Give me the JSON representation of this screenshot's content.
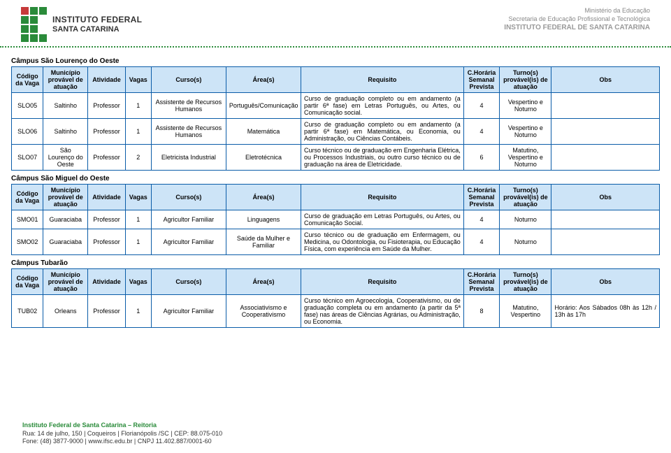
{
  "header": {
    "institution_line1": "INSTITUTO FEDERAL",
    "institution_line2": "SANTA CATARINA",
    "right_line1": "Ministério da Educação",
    "right_line2": "Secretaria de Educação Profissional e Tecnológica",
    "right_line3": "INSTITUTO FEDERAL DE SANTA CATARINA"
  },
  "columns": {
    "codigo": "Código da Vaga",
    "municipio": "Município provável de atuação",
    "atividade": "Atividade",
    "vagas": "Vagas",
    "cursos": "Curso(s)",
    "areas": "Área(s)",
    "requisito": "Requisito",
    "horaria": "C.Horária Semanal Prevista",
    "turnos": "Turno(s) provável(is) de atuação",
    "obs": "Obs"
  },
  "sections": [
    {
      "title": "Câmpus São Lourenço do Oeste",
      "show_header": true,
      "rows": [
        {
          "codigo": "SLO05",
          "municipio": "Saltinho",
          "atividade": "Professor",
          "vagas": "1",
          "cursos": "Assistente de Recursos Humanos",
          "areas": "Português/Comunicação",
          "requisito": "Curso de graduação completo ou em andamento (a partir 6ª fase) em Letras Português, ou Artes, ou Comunicação social.",
          "horaria": "4",
          "turnos": "Vespertino e Noturno",
          "obs": ""
        },
        {
          "codigo": "SLO06",
          "municipio": "Saltinho",
          "atividade": "Professor",
          "vagas": "1",
          "cursos": "Assistente de Recursos Humanos",
          "areas": "Matemática",
          "requisito": "Curso de graduação completo ou em andamento (a partir 6ª fase) em Matemática, ou Economia, ou Administração, ou Ciências Contábeis.",
          "horaria": "4",
          "turnos": "Vespertino e Noturno",
          "obs": ""
        },
        {
          "codigo": "SLO07",
          "municipio": "São Lourenço do Oeste",
          "atividade": "Professor",
          "vagas": "2",
          "cursos": "Eletricista Industrial",
          "areas": "Eletrotécnica",
          "requisito": "Curso técnico ou de graduação em Engenharia Elétrica, ou Processos Industriais, ou outro curso técnico ou de graduação na área de Eletricidade.",
          "horaria": "6",
          "turnos": "Matutino, Vespertino e Noturno",
          "obs": ""
        }
      ]
    },
    {
      "title": "Câmpus São Miguel do Oeste",
      "show_header": true,
      "rows": [
        {
          "codigo": "SMO01",
          "municipio": "Guaraciaba",
          "atividade": "Professor",
          "vagas": "1",
          "cursos": "Agricultor Familiar",
          "areas": "Linguagens",
          "requisito": "Curso de graduação em Letras Português, ou Artes, ou Comunicação Social.",
          "horaria": "4",
          "turnos": "Noturno",
          "obs": ""
        },
        {
          "codigo": "SMO02",
          "municipio": "Guaraciaba",
          "atividade": "Professor",
          "vagas": "1",
          "cursos": "Agricultor Familiar",
          "areas": "Saúde da Mulher e Familiar",
          "requisito": "Curso técnico ou de graduação em Enfermagem, ou Medicina, ou Odontologia, ou Fisioterapia, ou Educação Física, com experiência em Saúde da Mulher.",
          "horaria": "4",
          "turnos": "Noturno",
          "obs": ""
        }
      ]
    },
    {
      "title": "Câmpus Tubarão",
      "show_header": true,
      "rows": [
        {
          "codigo": "TUB02",
          "municipio": "Orleans",
          "atividade": "Professor",
          "vagas": "1",
          "cursos": "Agricultor Familiar",
          "areas": "Associativismo e Cooperativismo",
          "requisito": "Curso técnico em Agroecologia, Cooperativismo, ou de graduação completa ou em andamento (a partir da 5ª fase) nas áreas de Ciências Agrárias, ou Administração, ou Economia.",
          "horaria": "8",
          "turnos": "Matutino, Vespertino",
          "obs": "Horário: Aos Sábados 08h às 12h / 13h às 17h"
        }
      ]
    }
  ],
  "footer": {
    "title": "Instituto Federal de Santa Catarina – Reitoria",
    "addr": "Rua: 14 de julho, 150  |  Coqueiros  |  Florianópolis /SC  |  CEP: 88.075-010",
    "contact": "Fone: (48) 3877-9000  |  www.ifsc.edu.br  |  CNPJ 11.402.887/0001-60"
  },
  "colors": {
    "border": "#0a5ca8",
    "header_bg": "#cde4f7",
    "green": "#2a8b3a",
    "red": "#c63a3a",
    "gray": "#888888"
  }
}
